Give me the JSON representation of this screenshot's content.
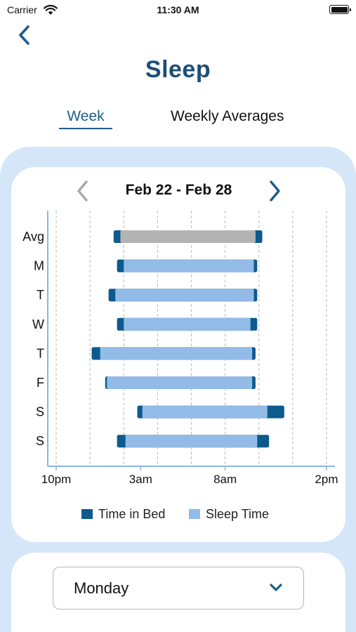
{
  "status_bar": {
    "carrier": "Carrier",
    "time": "11:30 AM"
  },
  "header": {
    "title": "Sleep"
  },
  "tabs": [
    {
      "label": "Week",
      "active": true
    },
    {
      "label": "Weekly Averages",
      "active": false
    }
  ],
  "week_nav": {
    "range": "Feb 22 - Feb 28",
    "prev_enabled": false,
    "next_enabled": true
  },
  "colors": {
    "accent": "#1d5e8a",
    "title": "#1d4e75",
    "time_in_bed": "#0d5a8c",
    "sleep_time": "#93bbe8",
    "average": "#b3b3b3",
    "panel": "#d5e6f8"
  },
  "chart_data": {
    "type": "bar",
    "orientation": "horizontal",
    "x_unit": "hours since 10pm",
    "xlim": [
      -0.5,
      16.5
    ],
    "x_ticks": [
      {
        "value": 0,
        "label": "10pm"
      },
      {
        "value": 5,
        "label": "3am"
      },
      {
        "value": 10,
        "label": "8am"
      },
      {
        "value": 16,
        "label": "2pm"
      }
    ],
    "gridlines": [
      0,
      2,
      4,
      6,
      8,
      10,
      12,
      14,
      16
    ],
    "categories": [
      "Avg",
      "M",
      "T",
      "W",
      "T",
      "F",
      "S",
      "S"
    ],
    "series": [
      {
        "name": "Time in Bed",
        "start": [
          3.4,
          3.6,
          3.1,
          3.6,
          2.1,
          2.9,
          4.8,
          3.6
        ],
        "end": [
          12.2,
          11.9,
          11.9,
          11.9,
          11.8,
          11.8,
          13.5,
          12.6
        ]
      },
      {
        "name": "Sleep Time",
        "start": [
          3.8,
          4.0,
          3.5,
          4.0,
          2.6,
          3.0,
          5.1,
          4.1
        ],
        "end": [
          11.8,
          11.7,
          11.7,
          11.5,
          11.6,
          11.6,
          12.5,
          11.9
        ]
      }
    ],
    "legend": [
      "Time in Bed",
      "Sleep Time"
    ],
    "legend_position": "bottom",
    "grid": true
  },
  "day_select": {
    "value": "Monday"
  }
}
